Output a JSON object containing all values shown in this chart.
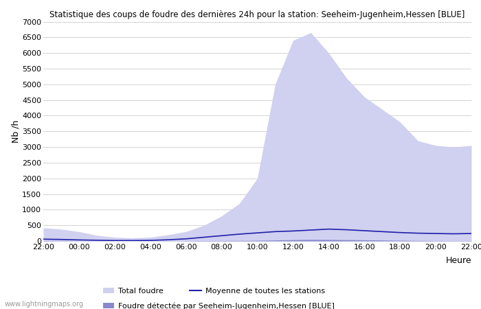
{
  "title": "Statistique des coups de foudre des dernières 24h pour la station: Seeheim-Jugenheim,Hessen [BLUE]",
  "ylabel": "Nb /h",
  "xlabel": "Heure",
  "watermark": "www.lightningmaps.org",
  "ylim": [
    0,
    7000
  ],
  "yticks": [
    0,
    500,
    1000,
    1500,
    2000,
    2500,
    3000,
    3500,
    4000,
    4500,
    5000,
    5500,
    6000,
    6500,
    7000
  ],
  "xtick_labels": [
    "22:00",
    "00:00",
    "02:00",
    "04:00",
    "06:00",
    "08:00",
    "10:00",
    "12:00",
    "14:00",
    "16:00",
    "18:00",
    "20:00",
    "22:00"
  ],
  "color_total": "#d0d0f0",
  "color_station": "#8888cc",
  "color_avg_line": "#2020aa",
  "total_foudre": [
    420,
    380,
    300,
    180,
    120,
    100,
    120,
    200,
    300,
    500,
    800,
    1200,
    2000,
    5000,
    6400,
    6650,
    6000,
    5200,
    4600,
    4200,
    3800,
    3200,
    3050,
    3000,
    3050
  ],
  "station_foudre": [
    10,
    8,
    5,
    3,
    2,
    2,
    3,
    5,
    8,
    10,
    12,
    15,
    20,
    30,
    40,
    50,
    45,
    40,
    35,
    30,
    20,
    15,
    10,
    8,
    10
  ],
  "avg_line": [
    60,
    50,
    35,
    25,
    15,
    15,
    20,
    40,
    70,
    120,
    170,
    220,
    260,
    300,
    320,
    350,
    380,
    360,
    330,
    300,
    270,
    250,
    240,
    230,
    240
  ],
  "legend_total": "Total foudre",
  "legend_avg": "Moyenne de toutes les stations",
  "legend_station": "Foudre détectée par Seeheim-Jugenheim,Hessen [BLUE]"
}
